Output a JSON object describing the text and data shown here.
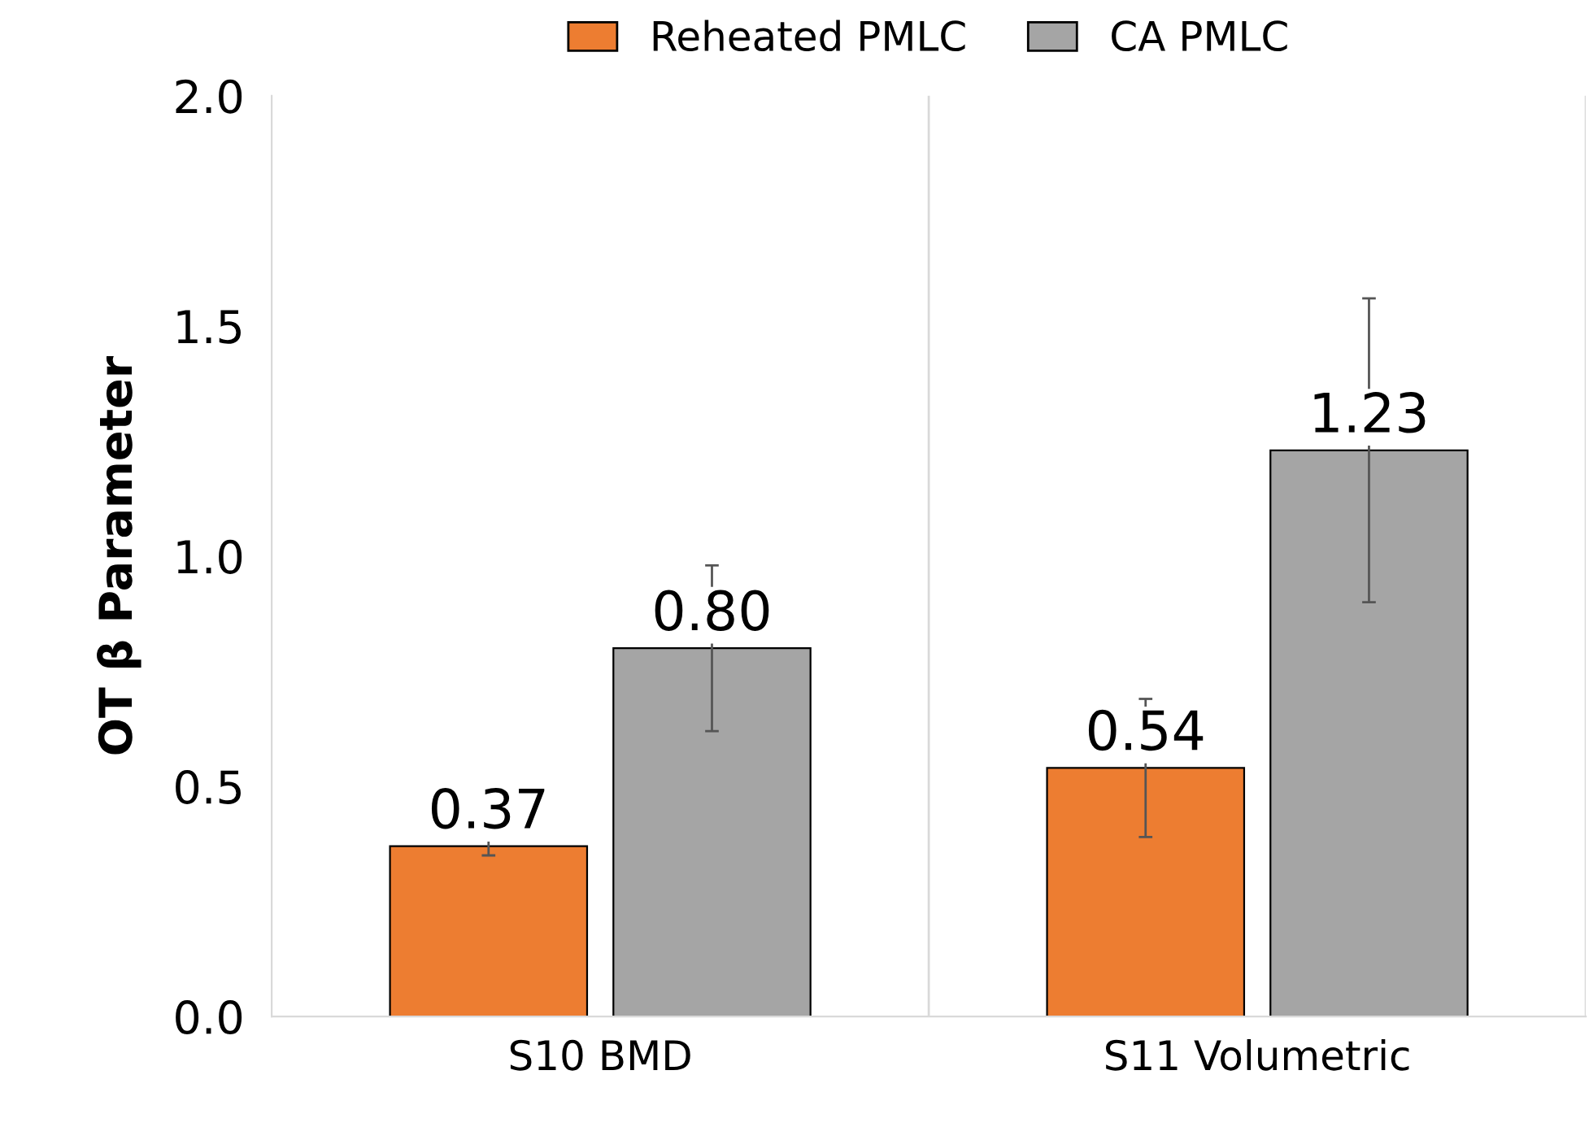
{
  "chart_data": {
    "type": "bar",
    "ylabel": "OT β Parameter",
    "categories": [
      "S10 BMD",
      "S11 Volumetric"
    ],
    "series": [
      {
        "name": "Reheated PMLC",
        "color": "#ed7d31",
        "values": [
          0.37,
          0.54
        ],
        "errors": [
          0.02,
          0.15
        ],
        "value_labels": [
          "0.37",
          "0.54"
        ]
      },
      {
        "name": "CA PMLC",
        "color": "#a5a5a5",
        "values": [
          0.8,
          1.23
        ],
        "errors": [
          0.18,
          0.33
        ],
        "value_labels": [
          "0.80",
          "1.23"
        ]
      }
    ],
    "ylim": [
      0,
      2.0
    ],
    "yticks": [
      {
        "value": 0,
        "label": "0.0"
      },
      {
        "value": 0.5,
        "label": "0.5"
      },
      {
        "value": 1.0,
        "label": "1.0"
      },
      {
        "value": 1.5,
        "label": "1.5"
      },
      {
        "value": 2.0,
        "label": "2.0"
      }
    ],
    "grid": "x",
    "legend": "top"
  }
}
